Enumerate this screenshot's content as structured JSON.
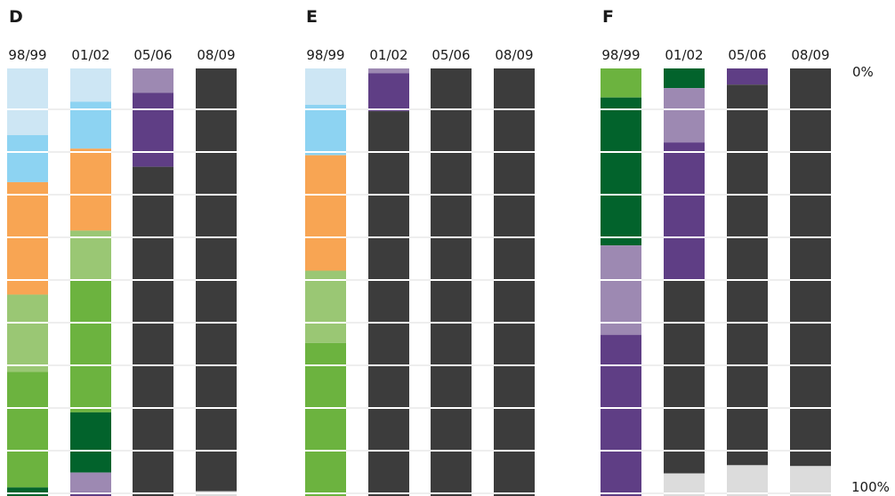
{
  "chart_data": {
    "type": "bar",
    "stacked": true,
    "orientation": "vertical",
    "y_scale_labels": {
      "top": "0%",
      "bottom": "100%"
    },
    "grid": true,
    "legend": null,
    "colors": {
      "pale_blue": "#cde6f4",
      "light_blue": "#8dd3f2",
      "orange": "#f8a553",
      "light_green": "#9ac774",
      "green": "#6cb33f",
      "dark_green": "#02632c",
      "light_purple": "#9d89b2",
      "purple": "#5f3e85",
      "dark_gray": "#3c3c3c",
      "light_gray": "#dcdcdc"
    },
    "panels": [
      {
        "title": "D",
        "categories": [
          "98/99",
          "01/02",
          "05/06",
          "08/09"
        ],
        "stacks": [
          [
            {
              "color": "pale_blue",
              "value": 15.6
            },
            {
              "color": "light_blue",
              "value": 11.0
            },
            {
              "color": "orange",
              "value": 26.3
            },
            {
              "color": "light_green",
              "value": 18.1
            },
            {
              "color": "green",
              "value": 27.0
            },
            {
              "color": "dark_green",
              "value": 2.0
            }
          ],
          [
            {
              "color": "pale_blue",
              "value": 7.8
            },
            {
              "color": "light_blue",
              "value": 11.0
            },
            {
              "color": "orange",
              "value": 19.2
            },
            {
              "color": "light_green",
              "value": 11.4
            },
            {
              "color": "green",
              "value": 31.2
            },
            {
              "color": "dark_green",
              "value": 14.1
            },
            {
              "color": "light_purple",
              "value": 4.6
            },
            {
              "color": "purple",
              "value": 0.9
            }
          ],
          [
            {
              "color": "light_purple",
              "value": 5.7
            },
            {
              "color": "purple",
              "value": 17.3
            },
            {
              "color": "dark_gray",
              "value": 77.0
            }
          ],
          [
            {
              "color": "dark_gray",
              "value": 98.9
            },
            {
              "color": "light_gray",
              "value": 1.1
            }
          ]
        ]
      },
      {
        "title": "E",
        "categories": [
          "98/99",
          "01/02",
          "05/06",
          "08/09"
        ],
        "stacks": [
          [
            {
              "color": "pale_blue",
              "value": 8.5
            },
            {
              "color": "light_blue",
              "value": 11.8
            },
            {
              "color": "orange",
              "value": 27.0
            },
            {
              "color": "light_green",
              "value": 16.9
            },
            {
              "color": "green",
              "value": 35.8
            }
          ],
          [
            {
              "color": "light_purple",
              "value": 1.1
            },
            {
              "color": "purple",
              "value": 8.9
            },
            {
              "color": "dark_gray",
              "value": 90.0
            }
          ],
          [
            {
              "color": "dark_gray",
              "value": 100.0
            }
          ],
          [
            {
              "color": "dark_gray",
              "value": 100.0
            }
          ]
        ]
      },
      {
        "title": "F",
        "categories": [
          "98/99",
          "01/02",
          "05/06",
          "08/09"
        ],
        "stacks": [
          [
            {
              "color": "green",
              "value": 6.8
            },
            {
              "color": "dark_green",
              "value": 34.6
            },
            {
              "color": "light_purple",
              "value": 20.9
            },
            {
              "color": "purple",
              "value": 37.7
            }
          ],
          [
            {
              "color": "dark_green",
              "value": 4.6
            },
            {
              "color": "light_purple",
              "value": 12.7
            },
            {
              "color": "purple",
              "value": 32.1
            },
            {
              "color": "dark_gray",
              "value": 45.3
            },
            {
              "color": "light_gray",
              "value": 5.3
            }
          ],
          [
            {
              "color": "purple",
              "value": 3.8
            },
            {
              "color": "dark_gray",
              "value": 89.0
            },
            {
              "color": "light_gray",
              "value": 7.2
            }
          ],
          [
            {
              "color": "dark_gray",
              "value": 93.0
            },
            {
              "color": "light_gray",
              "value": 7.0
            }
          ]
        ]
      }
    ]
  }
}
